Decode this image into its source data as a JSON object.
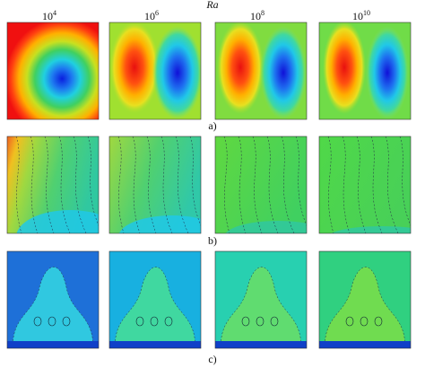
{
  "header": {
    "label": "Ra",
    "columns": [
      {
        "base": "10",
        "exponent": "4"
      },
      {
        "base": "10",
        "exponent": "6"
      },
      {
        "base": "10",
        "exponent": "8"
      },
      {
        "base": "10",
        "exponent": "10"
      }
    ]
  },
  "rows": [
    {
      "label": "a)"
    },
    {
      "label": "b)"
    },
    {
      "label": "c)"
    }
  ]
}
